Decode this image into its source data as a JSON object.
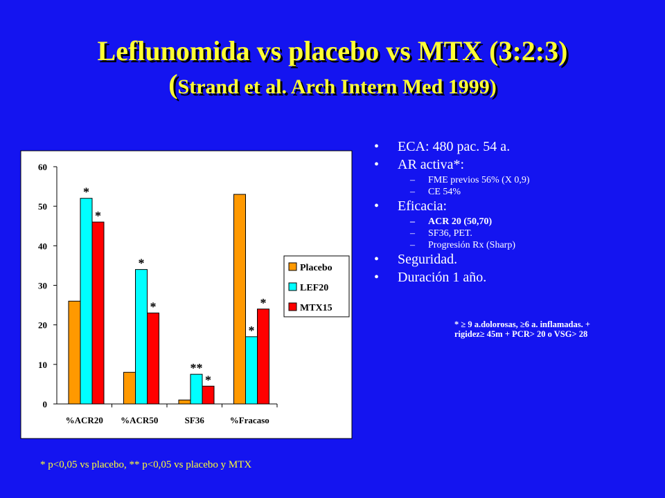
{
  "title": {
    "line1": "Leflunomida vs placebo vs MTX (3:2:3)",
    "line2_open": "(",
    "line2_rest": "Strand et al. Arch Intern Med 1999)"
  },
  "chart_data": {
    "type": "bar",
    "categories": [
      "%ACR20",
      "%ACR50",
      "SF36",
      "%Fracaso"
    ],
    "series": [
      {
        "name": "Placebo",
        "color": "#ff9900",
        "values": [
          26,
          8,
          1,
          53
        ]
      },
      {
        "name": "LEF20",
        "color": "#00ffff",
        "values": [
          52,
          34,
          7.5,
          17
        ]
      },
      {
        "name": "MTX15",
        "color": "#ff0000",
        "values": [
          46,
          23,
          4.5,
          24
        ]
      }
    ],
    "significance": [
      [
        "",
        "*",
        "*"
      ],
      [
        "",
        "*",
        "*"
      ],
      [
        "",
        "**",
        "*"
      ],
      [
        "",
        "*",
        "*"
      ]
    ],
    "ylim": [
      0,
      60
    ],
    "yticks": [
      0,
      10,
      20,
      30,
      40,
      50,
      60
    ],
    "grid": false,
    "legend": "right",
    "plot_bg": "#ffffff"
  },
  "bullets": [
    {
      "text": "ECA: 480 pac. 54 a.",
      "sub": []
    },
    {
      "text": "AR activa*:",
      "sub": [
        {
          "text": "FME previos 56% (X 0,9)",
          "bold": false
        },
        {
          "text": "CE 54%",
          "bold": false
        }
      ]
    },
    {
      "text": "Eficacia:",
      "sub": [
        {
          "text": "ACR 20 (50,70)",
          "bold": true
        },
        {
          "text": "SF36, PET.",
          "bold": false
        },
        {
          "text": "Progresión Rx (Sharp)",
          "bold": false
        }
      ]
    },
    {
      "text": "Seguridad.",
      "sub": []
    },
    {
      "text": "Duración 1 año.",
      "sub": []
    }
  ],
  "bullet_symbol": "•",
  "dash_symbol": "–",
  "note": {
    "line1": "* ≥ 9 a.dolorosas, ≥6 a. inflamadas. +",
    "line2": "rigidez≥ 45m + PCR> 20 o VSG> 28"
  },
  "footnote": "* p<0,05 vs placebo, ** p<0,05 vs placebo y MTX"
}
